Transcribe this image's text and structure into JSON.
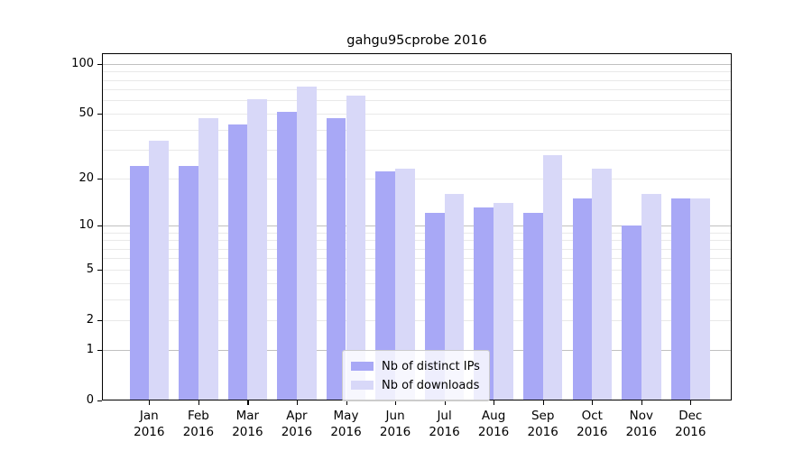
{
  "chart_data": {
    "type": "bar",
    "title": "gahgu95cprobe 2016",
    "categories": [
      "Jan 2016",
      "Feb 2016",
      "Mar 2016",
      "Apr 2016",
      "May 2016",
      "Jun 2016",
      "Jul 2016",
      "Aug 2016",
      "Sep 2016",
      "Oct 2016",
      "Nov 2016",
      "Dec 2016"
    ],
    "x_tick_month_labels": [
      "Jan",
      "Feb",
      "Mar",
      "Apr",
      "May",
      "Jun",
      "Jul",
      "Aug",
      "Sep",
      "Oct",
      "Nov",
      "Dec"
    ],
    "x_tick_year_label": "2016",
    "series": [
      {
        "name": "Nb of distinct IPs",
        "color": "#a8a8f6",
        "values": [
          24,
          24,
          43,
          51,
          47,
          22,
          12,
          13,
          12,
          15,
          10,
          15
        ]
      },
      {
        "name": "Nb of downloads",
        "color": "#d8d8f8",
        "values": [
          34,
          47,
          61,
          73,
          64,
          23,
          16,
          14,
          28,
          23,
          16,
          15
        ]
      }
    ],
    "y_scale": "log10(value+1)",
    "y_tick_labels": [
      0,
      1,
      2,
      5,
      10,
      20,
      50,
      100
    ],
    "y_major_gridlines": [
      1,
      10,
      100
    ],
    "y_minor_gridlines": [
      2,
      3,
      4,
      5,
      6,
      7,
      8,
      9,
      20,
      30,
      40,
      50,
      60,
      70,
      80,
      90
    ],
    "ylim": [
      0,
      116
    ],
    "legend_position": "lower center",
    "grid_major_color": "#c0c0c0",
    "grid_minor_color": "#e9e9e9",
    "axis_color": "#000000",
    "background_color": "#ffffff"
  }
}
